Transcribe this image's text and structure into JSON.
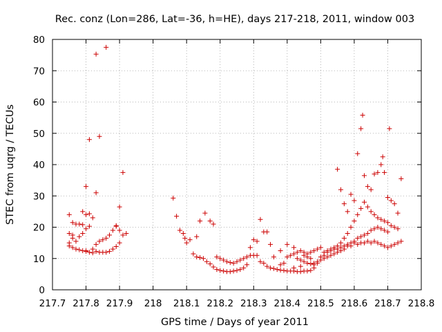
{
  "chart_data": {
    "type": "scatter",
    "title": "Rec. conz (Lon=286, Lat=-36, h=HE), days 217-218, 2011, window 003",
    "xlabel": "GPS time / Days of year 2011",
    "ylabel": "STEC from uqrg / TECUs",
    "xlim": [
      217.7,
      218.8
    ],
    "ylim": [
      0,
      80
    ],
    "xticks": [
      217.7,
      217.8,
      217.9,
      218.0,
      218.1,
      218.2,
      218.3,
      218.4,
      218.5,
      218.6,
      218.7,
      218.8
    ],
    "xtick_labels": [
      "217.7",
      "217.8",
      "217.9",
      "218",
      "218.1",
      "218.2",
      "218.3",
      "218.4",
      "218.5",
      "218.6",
      "218.7",
      "218.8"
    ],
    "yticks": [
      0,
      10,
      20,
      30,
      40,
      50,
      60,
      70,
      80
    ],
    "ytick_labels": [
      "0",
      "10",
      "20",
      "30",
      "40",
      "50",
      "60",
      "70",
      "80"
    ],
    "grid": true,
    "marker": "+",
    "color": "#cc0000",
    "series": [
      {
        "name": "STEC",
        "points": [
          [
            217.75,
            24.0
          ],
          [
            217.76,
            21.5
          ],
          [
            217.77,
            21.0
          ],
          [
            217.78,
            21.0
          ],
          [
            217.79,
            20.8
          ],
          [
            217.8,
            24.0
          ],
          [
            217.81,
            24.3
          ],
          [
            217.79,
            25.0
          ],
          [
            217.8,
            33.0
          ],
          [
            217.81,
            48.0
          ],
          [
            217.83,
            31.0
          ],
          [
            217.84,
            49.0
          ],
          [
            217.83,
            75.3
          ],
          [
            217.86,
            77.5
          ],
          [
            217.75,
            14.0
          ],
          [
            217.75,
            15.0
          ],
          [
            217.75,
            18.0
          ],
          [
            217.76,
            17.5
          ],
          [
            217.76,
            16.5
          ],
          [
            217.77,
            15.5
          ],
          [
            217.78,
            17.0
          ],
          [
            217.79,
            18.0
          ],
          [
            217.8,
            19.5
          ],
          [
            217.81,
            20.3
          ],
          [
            217.82,
            23.0
          ],
          [
            217.83,
            14.5
          ],
          [
            217.84,
            15.5
          ],
          [
            217.85,
            16.0
          ],
          [
            217.86,
            16.5
          ],
          [
            217.87,
            17.5
          ],
          [
            217.88,
            19.0
          ],
          [
            217.89,
            20.5
          ],
          [
            217.9,
            19.0
          ],
          [
            217.91,
            17.5
          ],
          [
            217.92,
            18.0
          ],
          [
            217.76,
            13.5
          ],
          [
            217.77,
            13.0
          ],
          [
            217.78,
            12.8
          ],
          [
            217.79,
            12.5
          ],
          [
            217.8,
            12.3
          ],
          [
            217.81,
            12.0
          ],
          [
            217.82,
            11.8
          ],
          [
            217.83,
            12.3
          ],
          [
            217.84,
            12.0
          ],
          [
            217.85,
            12.0
          ],
          [
            217.86,
            12.0
          ],
          [
            217.87,
            12.3
          ],
          [
            217.88,
            13.0
          ],
          [
            217.89,
            13.8
          ],
          [
            217.9,
            15.0
          ],
          [
            217.8,
            12.5
          ],
          [
            217.82,
            13.0
          ],
          [
            217.89,
            20.3
          ],
          [
            217.9,
            26.5
          ],
          [
            217.91,
            37.5
          ],
          [
            218.06,
            29.3
          ],
          [
            218.07,
            23.5
          ],
          [
            218.08,
            19.0
          ],
          [
            218.09,
            18.0
          ],
          [
            218.095,
            16.5
          ],
          [
            218.1,
            15.0
          ],
          [
            218.11,
            16.0
          ],
          [
            218.12,
            11.5
          ],
          [
            218.13,
            10.5
          ],
          [
            218.14,
            10.3
          ],
          [
            218.15,
            10.0
          ],
          [
            218.16,
            9.0
          ],
          [
            218.17,
            8.3
          ],
          [
            218.18,
            7.3
          ],
          [
            218.19,
            6.5
          ],
          [
            218.2,
            6.2
          ],
          [
            218.21,
            6.0
          ],
          [
            218.22,
            5.8
          ],
          [
            218.23,
            5.8
          ],
          [
            218.24,
            6.0
          ],
          [
            218.25,
            6.2
          ],
          [
            218.26,
            6.5
          ],
          [
            218.27,
            7.0
          ],
          [
            218.28,
            8.0
          ],
          [
            218.13,
            17.0
          ],
          [
            218.14,
            22.0
          ],
          [
            218.155,
            24.5
          ],
          [
            218.17,
            22.0
          ],
          [
            218.18,
            21.0
          ],
          [
            218.19,
            10.5
          ],
          [
            218.2,
            10.0
          ],
          [
            218.21,
            9.5
          ],
          [
            218.22,
            9.0
          ],
          [
            218.23,
            8.7
          ],
          [
            218.24,
            8.5
          ],
          [
            218.25,
            9.0
          ],
          [
            218.26,
            9.5
          ],
          [
            218.27,
            10.0
          ],
          [
            218.28,
            10.5
          ],
          [
            218.29,
            11.0
          ],
          [
            218.3,
            11.0
          ],
          [
            218.29,
            13.5
          ],
          [
            218.3,
            16.0
          ],
          [
            218.31,
            15.5
          ],
          [
            218.32,
            22.5
          ],
          [
            218.33,
            18.5
          ],
          [
            218.34,
            18.5
          ],
          [
            218.35,
            14.5
          ],
          [
            218.31,
            11.0
          ],
          [
            218.32,
            9.0
          ],
          [
            218.33,
            8.5
          ],
          [
            218.34,
            7.5
          ],
          [
            218.35,
            7.0
          ],
          [
            218.36,
            6.8
          ],
          [
            218.37,
            6.5
          ],
          [
            218.38,
            6.3
          ],
          [
            218.39,
            6.2
          ],
          [
            218.4,
            6.0
          ],
          [
            218.41,
            6.0
          ],
          [
            218.42,
            6.0
          ],
          [
            218.43,
            5.8
          ],
          [
            218.44,
            5.8
          ],
          [
            218.45,
            6.0
          ],
          [
            218.46,
            6.0
          ],
          [
            218.47,
            6.2
          ],
          [
            218.48,
            7.0
          ],
          [
            218.38,
            8.0
          ],
          [
            218.39,
            8.5
          ],
          [
            218.4,
            10.5
          ],
          [
            218.41,
            11.0
          ],
          [
            218.42,
            11.5
          ],
          [
            218.43,
            12.0
          ],
          [
            218.44,
            12.5
          ],
          [
            218.45,
            12.0
          ],
          [
            218.46,
            11.5
          ],
          [
            218.47,
            12.0
          ],
          [
            218.48,
            12.5
          ],
          [
            218.49,
            13.0
          ],
          [
            218.5,
            13.5
          ],
          [
            218.38,
            12.5
          ],
          [
            218.4,
            14.5
          ],
          [
            218.42,
            13.5
          ],
          [
            218.43,
            10.0
          ],
          [
            218.44,
            9.5
          ],
          [
            218.45,
            9.0
          ],
          [
            218.46,
            8.5
          ],
          [
            218.47,
            8.3
          ],
          [
            218.48,
            8.5
          ],
          [
            218.49,
            9.0
          ],
          [
            218.5,
            9.5
          ],
          [
            218.51,
            10.0
          ],
          [
            218.52,
            10.5
          ],
          [
            218.53,
            11.0
          ],
          [
            218.54,
            11.5
          ],
          [
            218.55,
            12.0
          ],
          [
            218.56,
            12.5
          ],
          [
            218.57,
            13.0
          ],
          [
            218.58,
            14.0
          ],
          [
            218.59,
            15.0
          ],
          [
            218.6,
            15.5
          ],
          [
            218.61,
            16.5
          ],
          [
            218.62,
            17.0
          ],
          [
            218.63,
            17.5
          ],
          [
            218.64,
            18.0
          ],
          [
            218.65,
            19.0
          ],
          [
            218.66,
            19.5
          ],
          [
            218.67,
            20.0
          ],
          [
            218.68,
            19.5
          ],
          [
            218.69,
            19.0
          ],
          [
            218.7,
            18.5
          ],
          [
            218.5,
            10.5
          ],
          [
            218.51,
            11.0
          ],
          [
            218.52,
            12.0
          ],
          [
            218.53,
            13.0
          ],
          [
            218.54,
            13.5
          ],
          [
            218.55,
            14.0
          ],
          [
            218.56,
            15.0
          ],
          [
            218.57,
            16.5
          ],
          [
            218.58,
            18.0
          ],
          [
            218.59,
            20.0
          ],
          [
            218.6,
            22.0
          ],
          [
            218.61,
            24.0
          ],
          [
            218.62,
            26.0
          ],
          [
            218.63,
            28.0
          ],
          [
            218.64,
            26.5
          ],
          [
            218.65,
            25.0
          ],
          [
            218.66,
            24.0
          ],
          [
            218.67,
            23.0
          ],
          [
            218.68,
            22.5
          ],
          [
            218.69,
            22.0
          ],
          [
            218.7,
            21.5
          ],
          [
            218.71,
            20.5
          ],
          [
            218.72,
            20.0
          ],
          [
            218.73,
            19.5
          ],
          [
            218.55,
            38.5
          ],
          [
            218.56,
            32.0
          ],
          [
            218.57,
            27.5
          ],
          [
            218.58,
            25.0
          ],
          [
            218.59,
            30.5
          ],
          [
            218.6,
            28.5
          ],
          [
            218.61,
            43.5
          ],
          [
            218.62,
            51.5
          ],
          [
            218.625,
            55.8
          ],
          [
            218.63,
            36.5
          ],
          [
            218.64,
            33.0
          ],
          [
            218.65,
            32.0
          ],
          [
            218.66,
            37.0
          ],
          [
            218.67,
            37.5
          ],
          [
            218.68,
            40.0
          ],
          [
            218.685,
            42.5
          ],
          [
            218.69,
            37.5
          ],
          [
            218.7,
            29.5
          ],
          [
            218.705,
            51.5
          ],
          [
            218.71,
            28.5
          ],
          [
            218.72,
            27.5
          ],
          [
            218.73,
            24.5
          ],
          [
            218.74,
            35.5
          ],
          [
            218.73,
            15.0
          ],
          [
            218.74,
            15.5
          ],
          [
            218.72,
            14.5
          ],
          [
            218.71,
            14.0
          ],
          [
            218.7,
            13.5
          ],
          [
            218.69,
            14.0
          ],
          [
            218.68,
            14.5
          ],
          [
            218.67,
            15.0
          ],
          [
            218.66,
            15.5
          ],
          [
            218.65,
            15.0
          ],
          [
            218.64,
            15.5
          ],
          [
            218.63,
            15.0
          ],
          [
            218.62,
            15.0
          ],
          [
            218.61,
            14.5
          ],
          [
            218.6,
            15.0
          ],
          [
            218.59,
            14.0
          ],
          [
            218.58,
            14.5
          ],
          [
            218.57,
            14.0
          ],
          [
            218.56,
            13.5
          ],
          [
            218.55,
            13.0
          ],
          [
            218.54,
            13.0
          ],
          [
            218.53,
            12.5
          ],
          [
            218.52,
            12.5
          ],
          [
            218.51,
            12.0
          ],
          [
            218.47,
            10.0
          ],
          [
            218.46,
            10.5
          ],
          [
            218.45,
            11.0
          ],
          [
            218.49,
            8.5
          ],
          [
            218.48,
            8.0
          ],
          [
            218.44,
            7.5
          ],
          [
            218.42,
            7.0
          ],
          [
            218.36,
            10.5
          ]
        ]
      }
    ]
  }
}
